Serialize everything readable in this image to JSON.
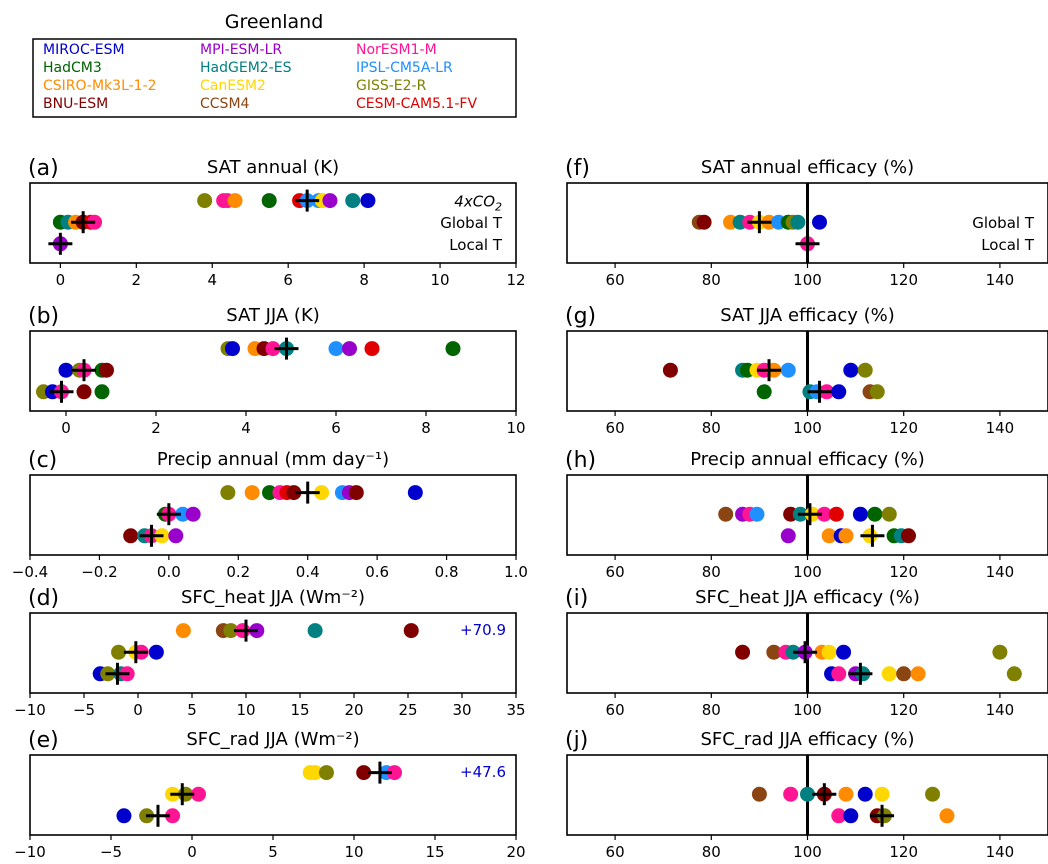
{
  "region_title": "Greenland",
  "legend": {
    "placement": "top-left",
    "entries": [
      {
        "name": "MIROC-ESM",
        "color": "#0000CC"
      },
      {
        "name": "MPI-ESM-LR",
        "color": "#9900CC"
      },
      {
        "name": "NorESM1-M",
        "color": "#FF1493"
      },
      {
        "name": "HadCM3",
        "color": "#006400"
      },
      {
        "name": "HadGEM2-ES",
        "color": "#008080"
      },
      {
        "name": "IPSL-CM5A-LR",
        "color": "#1E90FF"
      },
      {
        "name": "CSIRO-Mk3L-1-2",
        "color": "#FF8C00"
      },
      {
        "name": "CanESM2",
        "color": "#FFD700"
      },
      {
        "name": "GISS-E2-R",
        "color": "#808000"
      },
      {
        "name": "BNU-ESM",
        "color": "#800000"
      },
      {
        "name": "CCSM4",
        "color": "#8B4513"
      },
      {
        "name": "CESM-CAM5.1-FV",
        "color": "#E00000"
      }
    ]
  },
  "chart_data": [
    {
      "type": "scatter",
      "id": "a",
      "letter": "(a)",
      "title": "SAT annual (K)",
      "xlim": [
        -0.8,
        12
      ],
      "xticks": [
        0,
        2,
        4,
        6,
        8,
        10,
        12
      ],
      "xticklabels": [
        "0",
        "2",
        "4",
        "6",
        "8",
        "10",
        "12"
      ],
      "row_labels": [
        "4xCO2",
        "Global T",
        "Local T"
      ],
      "note": "",
      "rows": [
        [
          {
            "x": 3.8,
            "c": 8
          },
          {
            "x": 4.3,
            "c": 2
          },
          {
            "x": 4.4,
            "c": 2
          },
          {
            "x": 4.6,
            "c": 6
          },
          {
            "x": 5.5,
            "c": 3
          },
          {
            "x": 6.3,
            "c": 11
          },
          {
            "x": 6.5,
            "c": 5
          },
          {
            "x": 6.8,
            "c": 5
          },
          {
            "x": 6.9,
            "c": 7
          },
          {
            "x": 7.1,
            "c": 1
          },
          {
            "x": 7.7,
            "c": 4
          },
          {
            "x": 8.1,
            "c": 0
          }
        ],
        [
          {
            "x": 0.0,
            "c": 3
          },
          {
            "x": 0.2,
            "c": 4
          },
          {
            "x": 0.4,
            "c": 6
          },
          {
            "x": 0.6,
            "c": 9
          },
          {
            "x": 0.8,
            "c": 11
          },
          {
            "x": 0.9,
            "c": 2
          }
        ],
        [
          {
            "x": 0.0,
            "c": 2
          },
          {
            "x": 0.0,
            "c": 1
          }
        ]
      ],
      "means": [
        6.5,
        0.6,
        0.0
      ]
    },
    {
      "type": "scatter",
      "id": "b",
      "letter": "(b)",
      "title": "SAT JJA (K)",
      "xlim": [
        -0.8,
        10
      ],
      "xticks": [
        0,
        2,
        4,
        6,
        8,
        10
      ],
      "xticklabels": [
        "0",
        "2",
        "4",
        "6",
        "8",
        "10"
      ],
      "row_labels": [
        "",
        "",
        ""
      ],
      "note": "",
      "rows": [
        [
          {
            "x": 3.6,
            "c": 8
          },
          {
            "x": 3.7,
            "c": 0
          },
          {
            "x": 4.2,
            "c": 6
          },
          {
            "x": 4.4,
            "c": 9
          },
          {
            "x": 4.6,
            "c": 2
          },
          {
            "x": 4.9,
            "c": 4
          },
          {
            "x": 6.0,
            "c": 5
          },
          {
            "x": 6.3,
            "c": 1
          },
          {
            "x": 6.8,
            "c": 11
          },
          {
            "x": 8.6,
            "c": 3
          }
        ],
        [
          {
            "x": 0.0,
            "c": 0
          },
          {
            "x": 0.3,
            "c": 8
          },
          {
            "x": 0.4,
            "c": 2
          },
          {
            "x": 0.8,
            "c": 3
          },
          {
            "x": 0.9,
            "c": 9
          }
        ],
        [
          {
            "x": -0.5,
            "c": 8
          },
          {
            "x": -0.3,
            "c": 0
          },
          {
            "x": -0.1,
            "c": 2
          },
          {
            "x": 0.4,
            "c": 9
          },
          {
            "x": 0.8,
            "c": 3
          }
        ]
      ],
      "means": [
        4.9,
        0.4,
        -0.1
      ]
    },
    {
      "type": "scatter",
      "id": "c",
      "letter": "(c)",
      "title": "Precip annual (mm  day⁻¹)",
      "xlim": [
        -0.4,
        1.0
      ],
      "xticks": [
        -0.4,
        -0.2,
        0.0,
        0.2,
        0.4,
        0.6,
        0.8,
        1.0
      ],
      "xticklabels": [
        "−0.4",
        "−0.2",
        "0.0",
        "0.2",
        "0.4",
        "0.6",
        "0.8",
        "1.0"
      ],
      "row_labels": [
        "",
        "",
        ""
      ],
      "note": "",
      "rows": [
        [
          {
            "x": 0.17,
            "c": 8
          },
          {
            "x": 0.24,
            "c": 6
          },
          {
            "x": 0.29,
            "c": 3
          },
          {
            "x": 0.32,
            "c": 2
          },
          {
            "x": 0.34,
            "c": 11
          },
          {
            "x": 0.36,
            "c": 9
          },
          {
            "x": 0.44,
            "c": 7
          },
          {
            "x": 0.5,
            "c": 5
          },
          {
            "x": 0.52,
            "c": 1
          },
          {
            "x": 0.54,
            "c": 9
          },
          {
            "x": 0.71,
            "c": 0
          }
        ],
        [
          {
            "x": -0.01,
            "c": 3
          },
          {
            "x": 0.0,
            "c": 2
          },
          {
            "x": 0.04,
            "c": 5
          },
          {
            "x": 0.07,
            "c": 1
          }
        ],
        [
          {
            "x": -0.11,
            "c": 9
          },
          {
            "x": -0.07,
            "c": 4
          },
          {
            "x": -0.05,
            "c": 2
          },
          {
            "x": -0.02,
            "c": 7
          },
          {
            "x": 0.02,
            "c": 1
          }
        ]
      ],
      "means": [
        0.4,
        0.0,
        -0.05
      ]
    },
    {
      "type": "scatter",
      "id": "d",
      "letter": "(d)",
      "title": "SFC_heat JJA (Wm⁻²)",
      "xlim": [
        -10,
        35
      ],
      "xticks": [
        -10,
        -5,
        0,
        5,
        10,
        15,
        20,
        25,
        30,
        35
      ],
      "xticklabels": [
        "−10",
        "−5",
        "0",
        "5",
        "10",
        "15",
        "20",
        "25",
        "30",
        "35"
      ],
      "row_labels": [
        "",
        "",
        ""
      ],
      "note": "+70.9",
      "rows": [
        [
          {
            "x": 4.2,
            "c": 6
          },
          {
            "x": 7.9,
            "c": 10
          },
          {
            "x": 8.6,
            "c": 8
          },
          {
            "x": 9.7,
            "c": 2
          },
          {
            "x": 11.0,
            "c": 1
          },
          {
            "x": 16.4,
            "c": 4
          },
          {
            "x": 25.3,
            "c": 9
          }
        ],
        [
          {
            "x": -1.8,
            "c": 8
          },
          {
            "x": -0.2,
            "c": 7
          },
          {
            "x": 0.3,
            "c": 2
          },
          {
            "x": 1.7,
            "c": 0
          }
        ],
        [
          {
            "x": -3.5,
            "c": 0
          },
          {
            "x": -2.8,
            "c": 8
          },
          {
            "x": -1.6,
            "c": 4
          },
          {
            "x": -1.0,
            "c": 2
          }
        ]
      ],
      "means": [
        10.0,
        -0.2,
        -1.9
      ]
    },
    {
      "type": "scatter",
      "id": "e",
      "letter": "(e)",
      "title": "SFC_rad JJA (Wm⁻²)",
      "xlim": [
        -10,
        20
      ],
      "xticks": [
        -10,
        -5,
        0,
        5,
        10,
        15,
        20
      ],
      "xticklabels": [
        "−10",
        "−5",
        "0",
        "5",
        "10",
        "15",
        "20"
      ],
      "row_labels": [
        "",
        "",
        ""
      ],
      "note": "+47.6",
      "rows": [
        [
          {
            "x": 7.3,
            "c": 7
          },
          {
            "x": 7.6,
            "c": 7
          },
          {
            "x": 8.3,
            "c": 8
          },
          {
            "x": 10.6,
            "c": 9
          },
          {
            "x": 12.0,
            "c": 5
          },
          {
            "x": 12.5,
            "c": 2
          }
        ],
        [
          {
            "x": -1.2,
            "c": 7
          },
          {
            "x": -0.4,
            "c": 8
          },
          {
            "x": 0.4,
            "c": 2
          }
        ],
        [
          {
            "x": -4.2,
            "c": 0
          },
          {
            "x": -2.8,
            "c": 8
          },
          {
            "x": -1.2,
            "c": 2
          }
        ]
      ],
      "means": [
        11.6,
        -0.6,
        -2.1
      ]
    },
    {
      "type": "scatter",
      "id": "f",
      "letter": "(f)",
      "title": "SAT annual efficacy (%)",
      "xlim": [
        50,
        150
      ],
      "xticks": [
        60,
        80,
        100,
        120,
        140
      ],
      "xticklabels": [
        "60",
        "80",
        "100",
        "120",
        "140"
      ],
      "row_labels": [
        "",
        "Global T",
        "Local T"
      ],
      "note": "",
      "rows": [
        [],
        [
          {
            "x": 77.5,
            "c": 10
          },
          {
            "x": 78.5,
            "c": 9
          },
          {
            "x": 84,
            "c": 6
          },
          {
            "x": 86,
            "c": 4
          },
          {
            "x": 88,
            "c": 2
          },
          {
            "x": 90,
            "c": 7
          },
          {
            "x": 92,
            "c": 6
          },
          {
            "x": 94,
            "c": 5
          },
          {
            "x": 96,
            "c": 3
          },
          {
            "x": 97,
            "c": 8
          },
          {
            "x": 98,
            "c": 4
          },
          {
            "x": 102.5,
            "c": 0
          }
        ],
        [
          {
            "x": 100,
            "c": 2
          }
        ]
      ],
      "means": [
        null,
        90,
        100
      ]
    },
    {
      "type": "scatter",
      "id": "g",
      "letter": "(g)",
      "title": "SAT JJA efficacy (%)",
      "xlim": [
        50,
        150
      ],
      "xticks": [
        60,
        80,
        100,
        120,
        140
      ],
      "xticklabels": [
        "60",
        "80",
        "100",
        "120",
        "140"
      ],
      "row_labels": [
        "",
        "",
        ""
      ],
      "note": "",
      "rows": [
        [],
        [
          {
            "x": 71.5,
            "c": 9
          },
          {
            "x": 86.5,
            "c": 4
          },
          {
            "x": 87.5,
            "c": 3
          },
          {
            "x": 89.5,
            "c": 7
          },
          {
            "x": 91,
            "c": 2
          },
          {
            "x": 93,
            "c": 6
          },
          {
            "x": 96,
            "c": 5
          },
          {
            "x": 109,
            "c": 0
          },
          {
            "x": 112,
            "c": 8
          }
        ],
        [
          {
            "x": 91,
            "c": 3
          },
          {
            "x": 100.5,
            "c": 4
          },
          {
            "x": 102,
            "c": 5
          },
          {
            "x": 104,
            "c": 2
          },
          {
            "x": 106.5,
            "c": 0
          },
          {
            "x": 113,
            "c": 10
          },
          {
            "x": 114.5,
            "c": 8
          }
        ]
      ],
      "means": [
        null,
        92,
        102.5
      ]
    },
    {
      "type": "scatter",
      "id": "h",
      "letter": "(h)",
      "title": "Precip annual efficacy (%)",
      "xlim": [
        50,
        150
      ],
      "xticks": [
        60,
        80,
        100,
        120,
        140
      ],
      "xticklabels": [
        "60",
        "80",
        "100",
        "120",
        "140"
      ],
      "row_labels": [
        "",
        "",
        ""
      ],
      "note": "",
      "rows": [
        [],
        [
          {
            "x": 83,
            "c": 10
          },
          {
            "x": 86.5,
            "c": 1
          },
          {
            "x": 88,
            "c": 2
          },
          {
            "x": 89.5,
            "c": 5
          },
          {
            "x": 96.5,
            "c": 9
          },
          {
            "x": 98.5,
            "c": 4
          },
          {
            "x": 101,
            "c": 7
          },
          {
            "x": 103.5,
            "c": 2
          },
          {
            "x": 106,
            "c": 11
          },
          {
            "x": 111,
            "c": 0
          },
          {
            "x": 114,
            "c": 3
          },
          {
            "x": 117,
            "c": 8
          }
        ],
        [
          {
            "x": 96,
            "c": 1
          },
          {
            "x": 104.5,
            "c": 6
          },
          {
            "x": 107,
            "c": 0
          },
          {
            "x": 108,
            "c": 6
          },
          {
            "x": 113,
            "c": 7
          },
          {
            "x": 118,
            "c": 3
          },
          {
            "x": 119.5,
            "c": 4
          },
          {
            "x": 121,
            "c": 9
          }
        ]
      ],
      "means": [
        null,
        100.5,
        113.5
      ]
    },
    {
      "type": "scatter",
      "id": "i",
      "letter": "(i)",
      "title": "SFC_heat JJA efficacy (%)",
      "xlim": [
        50,
        150
      ],
      "xticks": [
        60,
        80,
        100,
        120,
        140
      ],
      "xticklabels": [
        "60",
        "80",
        "100",
        "120",
        "140"
      ],
      "row_labels": [
        "",
        "",
        ""
      ],
      "note": "",
      "rows": [
        [],
        [
          {
            "x": 86.5,
            "c": 9
          },
          {
            "x": 93,
            "c": 10
          },
          {
            "x": 95.5,
            "c": 2
          },
          {
            "x": 97,
            "c": 4
          },
          {
            "x": 99.5,
            "c": 1
          },
          {
            "x": 103,
            "c": 6
          },
          {
            "x": 104.5,
            "c": 7
          },
          {
            "x": 107.5,
            "c": 0
          },
          {
            "x": 140,
            "c": 8
          }
        ],
        [
          {
            "x": 105,
            "c": 0
          },
          {
            "x": 106.5,
            "c": 2
          },
          {
            "x": 110,
            "c": 1
          },
          {
            "x": 111.5,
            "c": 4
          },
          {
            "x": 117,
            "c": 7
          },
          {
            "x": 120,
            "c": 10
          },
          {
            "x": 123,
            "c": 6
          },
          {
            "x": 143,
            "c": 8
          }
        ]
      ],
      "means": [
        null,
        99.5,
        111
      ]
    },
    {
      "type": "scatter",
      "id": "j",
      "letter": "(j)",
      "title": "SFC_rad JJA efficacy (%)",
      "xlim": [
        50,
        150
      ],
      "xticks": [
        60,
        80,
        100,
        120,
        140
      ],
      "xticklabels": [
        "60",
        "80",
        "100",
        "120",
        "140"
      ],
      "row_labels": [
        "",
        "",
        ""
      ],
      "note": "",
      "rows": [
        [],
        [
          {
            "x": 90,
            "c": 10
          },
          {
            "x": 96.5,
            "c": 2
          },
          {
            "x": 100,
            "c": 4
          },
          {
            "x": 103.5,
            "c": 9
          },
          {
            "x": 108,
            "c": 6
          },
          {
            "x": 112,
            "c": 0
          },
          {
            "x": 115.5,
            "c": 7
          },
          {
            "x": 126,
            "c": 8
          }
        ],
        [
          {
            "x": 106.5,
            "c": 2
          },
          {
            "x": 109,
            "c": 0
          },
          {
            "x": 114.5,
            "c": 9
          },
          {
            "x": 116,
            "c": 8
          },
          {
            "x": 129,
            "c": 6
          }
        ]
      ],
      "means": [
        null,
        103.5,
        115.5
      ]
    }
  ]
}
